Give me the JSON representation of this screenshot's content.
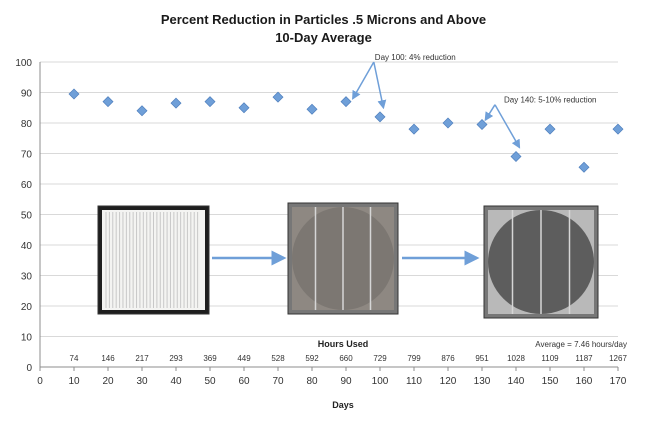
{
  "chart_data": {
    "type": "scatter",
    "title": "Percent Reduction in Particles .5 Microns and Above",
    "subtitle": "10-Day Average",
    "xlabel": "Days",
    "ylabel": "",
    "xlim": [
      0,
      170
    ],
    "ylim": [
      0,
      100
    ],
    "x_ticks": [
      0,
      10,
      20,
      30,
      40,
      50,
      60,
      70,
      80,
      90,
      100,
      110,
      120,
      130,
      140,
      150,
      160,
      170
    ],
    "y_ticks": [
      0,
      10,
      20,
      30,
      40,
      50,
      60,
      70,
      80,
      90,
      100
    ],
    "grid": "horizontal",
    "marker": "diamond",
    "color": "#6f9fd8",
    "points": [
      {
        "x": 10,
        "y": 89.5
      },
      {
        "x": 20,
        "y": 87
      },
      {
        "x": 30,
        "y": 84
      },
      {
        "x": 40,
        "y": 86.5
      },
      {
        "x": 50,
        "y": 87
      },
      {
        "x": 60,
        "y": 85
      },
      {
        "x": 70,
        "y": 88.5
      },
      {
        "x": 80,
        "y": 84.5
      },
      {
        "x": 90,
        "y": 87
      },
      {
        "x": 100,
        "y": 82
      },
      {
        "x": 110,
        "y": 78
      },
      {
        "x": 120,
        "y": 80
      },
      {
        "x": 130,
        "y": 79.5
      },
      {
        "x": 140,
        "y": 69
      },
      {
        "x": 150,
        "y": 78
      },
      {
        "x": 160,
        "y": 65.5
      },
      {
        "x": 170,
        "y": 78
      }
    ],
    "hours_used_label": "Hours Used",
    "hours_used": [
      "74",
      "146",
      "217",
      "293",
      "369",
      "449",
      "528",
      "592",
      "660",
      "729",
      "799",
      "876",
      "951",
      "1028",
      "1109",
      "1187",
      "1267"
    ],
    "average_note": "Average = 7.46 hours/day",
    "annotations": [
      {
        "text": "Day 100: 4% reduction",
        "anchor_x": 97,
        "anchor_y": 100,
        "targets": [
          {
            "x": 92,
            "y": 88
          },
          {
            "x": 101,
            "y": 85
          }
        ]
      },
      {
        "text": "Day 140: 5-10% reduction",
        "anchor_x": 135,
        "anchor_y": 86,
        "targets": [
          {
            "x": 131,
            "y": 81
          },
          {
            "x": 141,
            "y": 72
          }
        ]
      }
    ],
    "images": [
      "clean filter",
      "used filter",
      "heavily used filter"
    ]
  }
}
